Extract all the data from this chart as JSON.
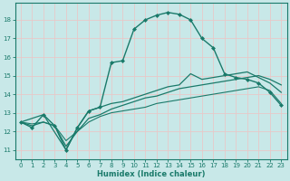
{
  "background_color": "#c8e8e8",
  "grid_color": "#e8c8c8",
  "line_color": "#1a7a6a",
  "xlabel": "Humidex (Indice chaleur)",
  "xlim": [
    -0.5,
    23.5
  ],
  "ylim": [
    10.5,
    18.9
  ],
  "yticks": [
    11,
    12,
    13,
    14,
    15,
    16,
    17,
    18
  ],
  "xticks": [
    0,
    1,
    2,
    3,
    4,
    5,
    6,
    7,
    8,
    9,
    10,
    11,
    12,
    13,
    14,
    15,
    16,
    17,
    18,
    19,
    20,
    21,
    22,
    23
  ],
  "series": [
    {
      "x": [
        0,
        1,
        2,
        3,
        4,
        5,
        6,
        7,
        8,
        9,
        10,
        11,
        12,
        13,
        14,
        15,
        16,
        17,
        18,
        19,
        20,
        21,
        22,
        23
      ],
      "y": [
        12.5,
        12.2,
        12.9,
        12.3,
        11.0,
        12.2,
        13.1,
        13.3,
        15.7,
        15.8,
        17.5,
        18.0,
        18.25,
        18.4,
        18.3,
        18.0,
        17.0,
        16.5,
        15.1,
        14.9,
        14.8,
        14.6,
        14.1,
        13.4
      ],
      "marker": "D",
      "markersize": 2.0,
      "linewidth": 1.0,
      "linestyle": "-"
    },
    {
      "x": [
        0,
        2,
        4,
        5,
        6,
        7,
        8,
        9,
        10,
        11,
        12,
        13,
        14,
        15,
        16,
        17,
        18,
        19,
        20,
        21,
        22,
        23
      ],
      "y": [
        12.5,
        12.9,
        11.0,
        12.2,
        13.1,
        13.3,
        13.5,
        13.6,
        13.8,
        14.0,
        14.2,
        14.4,
        14.5,
        15.1,
        14.8,
        14.9,
        15.0,
        15.1,
        15.2,
        14.9,
        14.6,
        14.1
      ],
      "marker": "None",
      "markersize": 0,
      "linewidth": 0.9,
      "linestyle": "-"
    },
    {
      "x": [
        0,
        1,
        2,
        3,
        4,
        5,
        6,
        7,
        8,
        9,
        10,
        11,
        12,
        13,
        14,
        15,
        16,
        17,
        18,
        19,
        20,
        21,
        22,
        23
      ],
      "y": [
        12.5,
        12.3,
        12.5,
        12.3,
        11.2,
        12.0,
        12.7,
        12.9,
        13.2,
        13.4,
        13.6,
        13.8,
        13.9,
        14.1,
        14.3,
        14.4,
        14.5,
        14.6,
        14.7,
        14.8,
        14.9,
        15.0,
        14.8,
        14.5
      ],
      "marker": "None",
      "markersize": 0,
      "linewidth": 0.9,
      "linestyle": "-"
    },
    {
      "x": [
        0,
        1,
        2,
        3,
        4,
        5,
        6,
        7,
        8,
        9,
        10,
        11,
        12,
        13,
        14,
        15,
        16,
        17,
        18,
        19,
        20,
        21,
        22,
        23
      ],
      "y": [
        12.5,
        12.4,
        12.5,
        12.3,
        11.5,
        12.0,
        12.5,
        12.8,
        13.0,
        13.1,
        13.2,
        13.3,
        13.5,
        13.6,
        13.7,
        13.8,
        13.9,
        14.0,
        14.1,
        14.2,
        14.3,
        14.4,
        14.2,
        13.5
      ],
      "marker": "None",
      "markersize": 0,
      "linewidth": 0.8,
      "linestyle": "-"
    }
  ]
}
